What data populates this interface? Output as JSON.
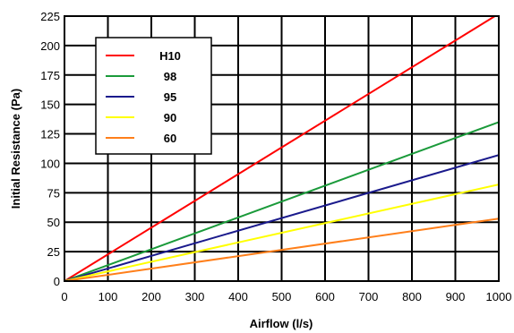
{
  "chart_data": {
    "type": "line",
    "title": "",
    "xlabel": "Airflow (l/s)",
    "ylabel": "Initial Resistance (Pa)",
    "xlim": [
      0,
      1000
    ],
    "ylim": [
      0,
      225
    ],
    "x_ticks": [
      0,
      100,
      200,
      300,
      400,
      500,
      600,
      700,
      800,
      900,
      1000
    ],
    "y_ticks": [
      0,
      25,
      50,
      75,
      100,
      125,
      150,
      175,
      200,
      225
    ],
    "grid": true,
    "legend_position": "top-left",
    "series": [
      {
        "name": "H10",
        "color": "#ff0000",
        "x": [
          0,
          1000
        ],
        "y": [
          0,
          227
        ]
      },
      {
        "name": "98",
        "color": "#1a9a3a",
        "x": [
          0,
          1000
        ],
        "y": [
          0,
          135
        ]
      },
      {
        "name": "95",
        "color": "#1a1a8c",
        "x": [
          0,
          1000
        ],
        "y": [
          0,
          107
        ]
      },
      {
        "name": "90",
        "color": "#ffff00",
        "x": [
          0,
          1000
        ],
        "y": [
          0,
          82
        ]
      },
      {
        "name": "60",
        "color": "#ff7f1a",
        "x": [
          0,
          1000
        ],
        "y": [
          0,
          53
        ]
      }
    ]
  }
}
